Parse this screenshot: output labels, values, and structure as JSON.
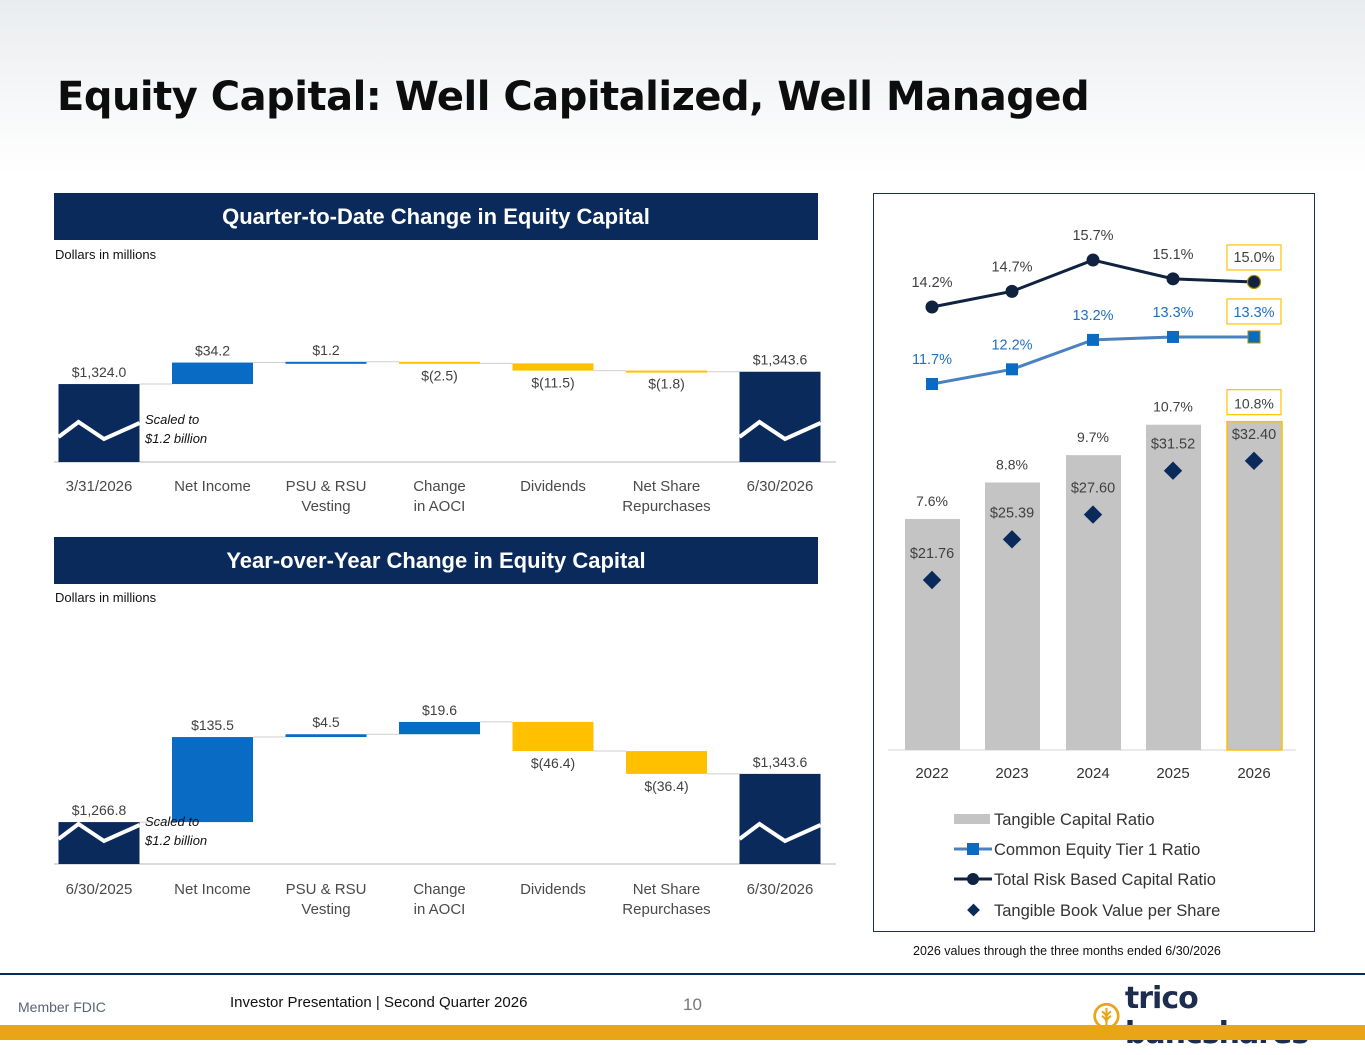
{
  "title": "Equity Capital: Well Capitalized, Well Managed",
  "colors": {
    "navy": "#0a2a5c",
    "blue": "#0a6bc4",
    "gold": "#ffc000",
    "gray": "#c4c4c4"
  },
  "footer": {
    "fdic": "Member FDIC",
    "presentation": "Investor Presentation  |  Second Quarter 2026",
    "page": "10",
    "logo": "trico bancshares",
    "logo_icon": "wheat-icon"
  },
  "panel_note": "2026 values through the three months ended 6/30/2026",
  "chart_data": [
    {
      "type": "waterfall",
      "title": "Quarter-to-Date Change in Equity Capital",
      "unit_note": "Dollars in millions",
      "scale_note": [
        "Scaled to",
        "$1.2 billion"
      ],
      "categories": [
        [
          "3/31/2026"
        ],
        [
          "Net Income"
        ],
        [
          "PSU & RSU",
          "Vesting"
        ],
        [
          "Change",
          "in AOCI"
        ],
        [
          "Dividends"
        ],
        [
          "Net Share",
          "Repurchases"
        ],
        [
          "6/30/2026"
        ]
      ],
      "values": [
        1324.0,
        34.2,
        1.2,
        -2.5,
        -11.5,
        -1.8,
        1343.6
      ],
      "labels": [
        "$1,324.0",
        "$34.2",
        "$1.2",
        "$(2.5)",
        "$(11.5)",
        "$(1.8)",
        "$1,343.6"
      ],
      "kinds": [
        "total",
        "increase",
        "increase",
        "decrease",
        "decrease",
        "decrease",
        "total"
      ],
      "axis_base": 1200,
      "ylim": [
        1200,
        1360
      ]
    },
    {
      "type": "waterfall",
      "title": "Year-over-Year Change in Equity Capital",
      "unit_note": "Dollars in millions",
      "scale_note": [
        "Scaled to",
        "$1.2 billion"
      ],
      "categories": [
        [
          "6/30/2025"
        ],
        [
          "Net Income"
        ],
        [
          "PSU & RSU",
          "Vesting"
        ],
        [
          "Change",
          "in AOCI"
        ],
        [
          "Dividends"
        ],
        [
          "Net Share",
          "Repurchases"
        ],
        [
          "6/30/2026"
        ]
      ],
      "values": [
        1266.8,
        135.5,
        4.5,
        19.6,
        -46.4,
        -36.4,
        1343.6
      ],
      "labels": [
        "$1,266.8",
        "$135.5",
        "$4.5",
        "$19.6",
        "$(46.4)",
        "$(36.4)",
        "$1,343.6"
      ],
      "kinds": [
        "total",
        "increase",
        "increase",
        "increase",
        "decrease",
        "decrease",
        "total"
      ],
      "axis_base": 1200,
      "ylim": [
        1200,
        1440
      ]
    },
    {
      "type": "bar+line",
      "categories": [
        "2022",
        "2023",
        "2024",
        "2025",
        "2026"
      ],
      "series": [
        {
          "name": "Tangible Capital Ratio",
          "type": "bar",
          "values": [
            7.6,
            8.8,
            9.7,
            10.7,
            10.8
          ],
          "labels": [
            "7.6%",
            "8.8%",
            "9.7%",
            "10.7%",
            "10.8%"
          ]
        },
        {
          "name": "Common Equity Tier 1 Ratio",
          "type": "line",
          "values": [
            11.7,
            12.2,
            13.2,
            13.3,
            13.3
          ],
          "labels": [
            "11.7%",
            "12.2%",
            "13.2%",
            "13.3%",
            "13.3%"
          ]
        },
        {
          "name": "Total Risk Based Capital Ratio",
          "type": "line",
          "values": [
            14.2,
            14.7,
            15.7,
            15.1,
            15.0
          ],
          "labels": [
            "14.2%",
            "14.7%",
            "15.7%",
            "15.1%",
            "15.0%"
          ]
        },
        {
          "name": "Tangible Book Value per Share",
          "type": "scatter",
          "values": [
            21.76,
            25.39,
            27.6,
            31.52,
            32.4
          ],
          "labels": [
            "$21.76",
            "$25.39",
            "$27.60",
            "$31.52",
            "$32.40"
          ]
        }
      ],
      "legend": "bottom",
      "highlight_category": "2026"
    }
  ]
}
